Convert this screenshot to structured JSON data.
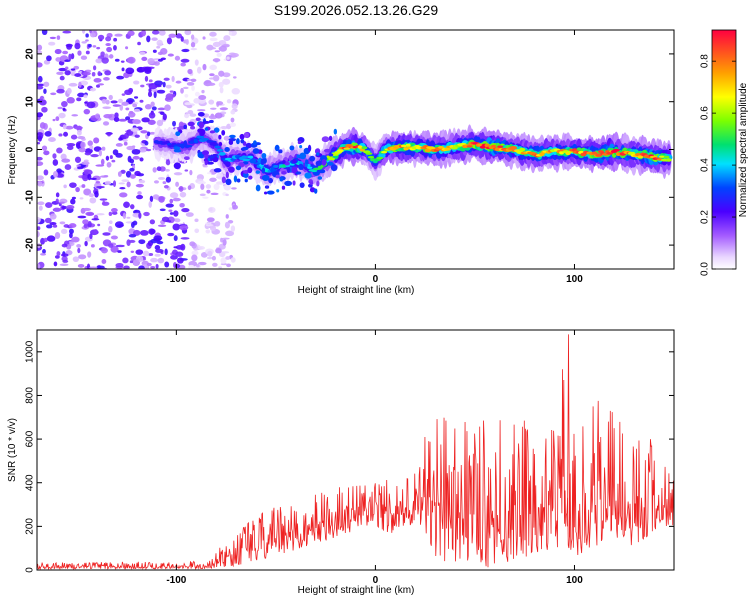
{
  "title": "S199.2026.052.13.26.G29",
  "colors": {
    "snr_line": "#ee2222",
    "frame": "#000000"
  },
  "chart_data": [
    {
      "type": "heatmap",
      "title": "S199.2026.052.13.26.G29",
      "xlabel": "Height of straight line (km)",
      "ylabel": "Frequency (Hz)",
      "xlim": [
        -170,
        150
      ],
      "ylim": [
        -25,
        25
      ],
      "xticks": [
        -100,
        0,
        100
      ],
      "xtick_labels": [
        "-100",
        "0",
        "100"
      ],
      "yticks": [
        -20,
        -10,
        0,
        10,
        20
      ],
      "ytick_labels": [
        "-20",
        "-10",
        "0",
        "10",
        "20"
      ],
      "colorbar": {
        "label": "Normalized spectral amplitude",
        "range": [
          0,
          0.92
        ],
        "ticks": [
          0.0,
          0.2,
          0.4,
          0.6,
          0.8
        ],
        "tick_labels": [
          "0.0",
          "0.2",
          "0.4",
          "0.6",
          "0.8"
        ]
      },
      "ridge": {
        "description": "frequency of spectral peak vs height",
        "x": [
          -110,
          -95,
          -88,
          -80,
          -75,
          -70,
          -62,
          -55,
          -48,
          -40,
          -34,
          -30,
          -25,
          -20,
          -15,
          -10,
          -5,
          0,
          5,
          10,
          20,
          30,
          40,
          50,
          60,
          70,
          80,
          90,
          100,
          110,
          120,
          130,
          140,
          148
        ],
        "y": [
          1.5,
          0.5,
          2.5,
          1.0,
          -2.5,
          -1.5,
          -2.0,
          -4.5,
          -3.5,
          -2.5,
          -3.5,
          -4.5,
          -2.5,
          -1.0,
          0.5,
          0.5,
          0.0,
          -2.5,
          0.0,
          0.5,
          0.5,
          0.0,
          0.5,
          1.0,
          0.5,
          0.0,
          -1.0,
          -0.5,
          -0.5,
          -1.0,
          -0.5,
          -1.0,
          -1.5,
          -2.0
        ],
        "amplitude": [
          0.25,
          0.3,
          0.3,
          0.3,
          0.35,
          0.35,
          0.35,
          0.4,
          0.4,
          0.45,
          0.4,
          0.45,
          0.55,
          0.7,
          0.8,
          0.85,
          0.6,
          0.45,
          0.6,
          0.8,
          0.7,
          0.75,
          0.65,
          0.8,
          0.9,
          0.7,
          0.75,
          0.7,
          0.75,
          0.8,
          0.85,
          0.7,
          0.85,
          0.6
        ]
      },
      "noise": {
        "x_range": [
          -170,
          -85
        ],
        "amplitude_range": [
          0.05,
          0.25
        ]
      }
    },
    {
      "type": "line",
      "xlabel": "Height of straight line (km)",
      "ylabel": "SNR (10 * v/v)",
      "xlim": [
        -170,
        150
      ],
      "ylim": [
        0,
        1100
      ],
      "xticks": [
        -100,
        0,
        100
      ],
      "xtick_labels": [
        "-100",
        "0",
        "100"
      ],
      "yticks": [
        0,
        200,
        400,
        600,
        800,
        1000
      ],
      "ytick_labels": [
        "0",
        "200",
        "400",
        "600",
        "800",
        "1000"
      ],
      "envelope": {
        "x": [
          -170,
          -100,
          -85,
          -80,
          -70,
          -60,
          -50,
          -40,
          -30,
          -20,
          -10,
          0,
          10,
          20,
          25,
          30,
          40,
          50,
          60,
          70,
          80,
          90,
          97,
          100,
          110,
          120,
          130,
          140,
          150
        ],
        "low": [
          5,
          5,
          5,
          10,
          20,
          40,
          60,
          90,
          120,
          150,
          180,
          200,
          150,
          220,
          180,
          40,
          30,
          10,
          10,
          50,
          50,
          80,
          100,
          60,
          100,
          150,
          100,
          180,
          200
        ],
        "high": [
          35,
          40,
          50,
          80,
          200,
          250,
          300,
          300,
          350,
          380,
          400,
          420,
          430,
          500,
          650,
          700,
          750,
          700,
          750,
          700,
          680,
          720,
          1080,
          620,
          780,
          800,
          700,
          600,
          450
        ]
      }
    }
  ]
}
